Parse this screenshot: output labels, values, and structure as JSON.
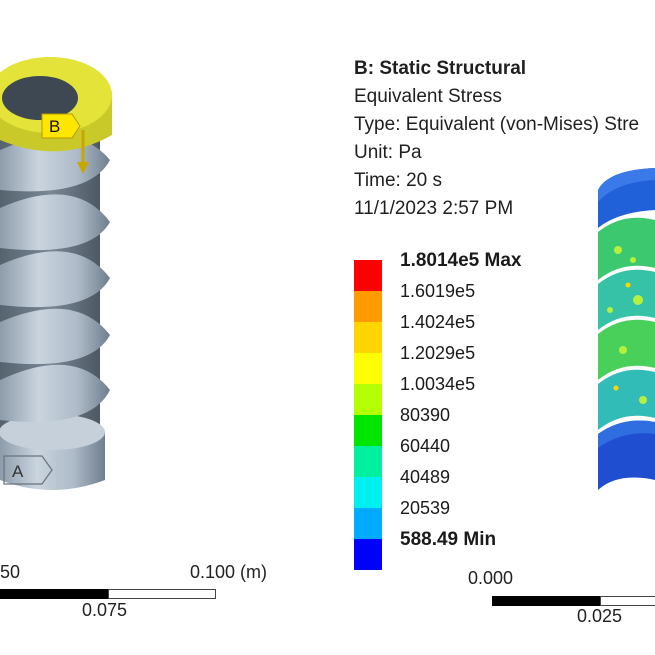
{
  "left": {
    "load_label": "B",
    "support_label": "A",
    "scale": {
      "label_left": "50",
      "label_mid": "0.075",
      "label_right": "0.100 (m)"
    }
  },
  "right": {
    "title": "B: Static Structural",
    "result": "Equivalent Stress",
    "type": "Type: Equivalent (von-Mises) Stre",
    "unit": "Unit: Pa",
    "time": "Time: 20 s",
    "date": "11/1/2023 2:57 PM",
    "legend": [
      {
        "label": "1.8014e5 Max",
        "color": "#ff0000",
        "bold": true
      },
      {
        "label": "1.6019e5",
        "color": "#ff9a00"
      },
      {
        "label": "1.4024e5",
        "color": "#ffd400"
      },
      {
        "label": "1.2029e5",
        "color": "#ffff00"
      },
      {
        "label": "1.0034e5",
        "color": "#b4ff00"
      },
      {
        "label": "80390",
        "color": "#00e600"
      },
      {
        "label": "60440",
        "color": "#00f0a0"
      },
      {
        "label": "40489",
        "color": "#00f0f0"
      },
      {
        "label": "20539",
        "color": "#00aaff"
      },
      {
        "label": "588.49 Min",
        "color": "#0000ff",
        "bold": true
      }
    ],
    "scale": {
      "label_left": "0.000",
      "label_mid": "0.025"
    }
  }
}
